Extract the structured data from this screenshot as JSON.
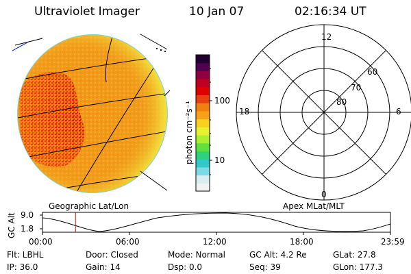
{
  "header": {
    "instrument": "Ultraviolet Imager",
    "date": "10 Jan 07",
    "time": "02:16:34 UT"
  },
  "colorbar": {
    "unit_label": "photon cm⁻²s⁻¹",
    "tick_100": "100",
    "tick_10": "10",
    "colors": [
      "#f2f2f2",
      "#d8eef0",
      "#7fd8e8",
      "#30c8c8",
      "#30d080",
      "#60e040",
      "#a8f030",
      "#e8f030",
      "#f8d020",
      "#f8a018",
      "#f08010",
      "#e84010",
      "#e00000",
      "#c00020",
      "#900040",
      "#500050",
      "#200030"
    ]
  },
  "left_panel": {
    "label": "Geographic Lat/Lon"
  },
  "polar_plot": {
    "label": "Apex MLat/MLT",
    "mlt_12": "12",
    "mlt_18": "18",
    "mlt_6": "6",
    "mlt_0": "0",
    "lat_60": "60",
    "lat_70": "70",
    "lat_80": "80"
  },
  "altitude_plot": {
    "ylabel": "GC Alt",
    "ytick_top": "9.0",
    "ytick_bottom": "1.8",
    "xticks": [
      "00:00",
      "06:00",
      "12:00",
      "18:00",
      "23:59"
    ],
    "current_time_marker_hours": 2.28
  },
  "status": {
    "filter": "Flt: LBHL",
    "door": "Door: Closed",
    "mode": "Mode: Normal",
    "gc_alt": "GC Alt: 4.2 Re",
    "glat": "GLat:  27.8",
    "ip": "IP: 36.0",
    "gain": "Gain: 14",
    "dsp": "Dsp:     0.0",
    "seq": "Seq: 39",
    "glon": "GLon: 177.3"
  }
}
